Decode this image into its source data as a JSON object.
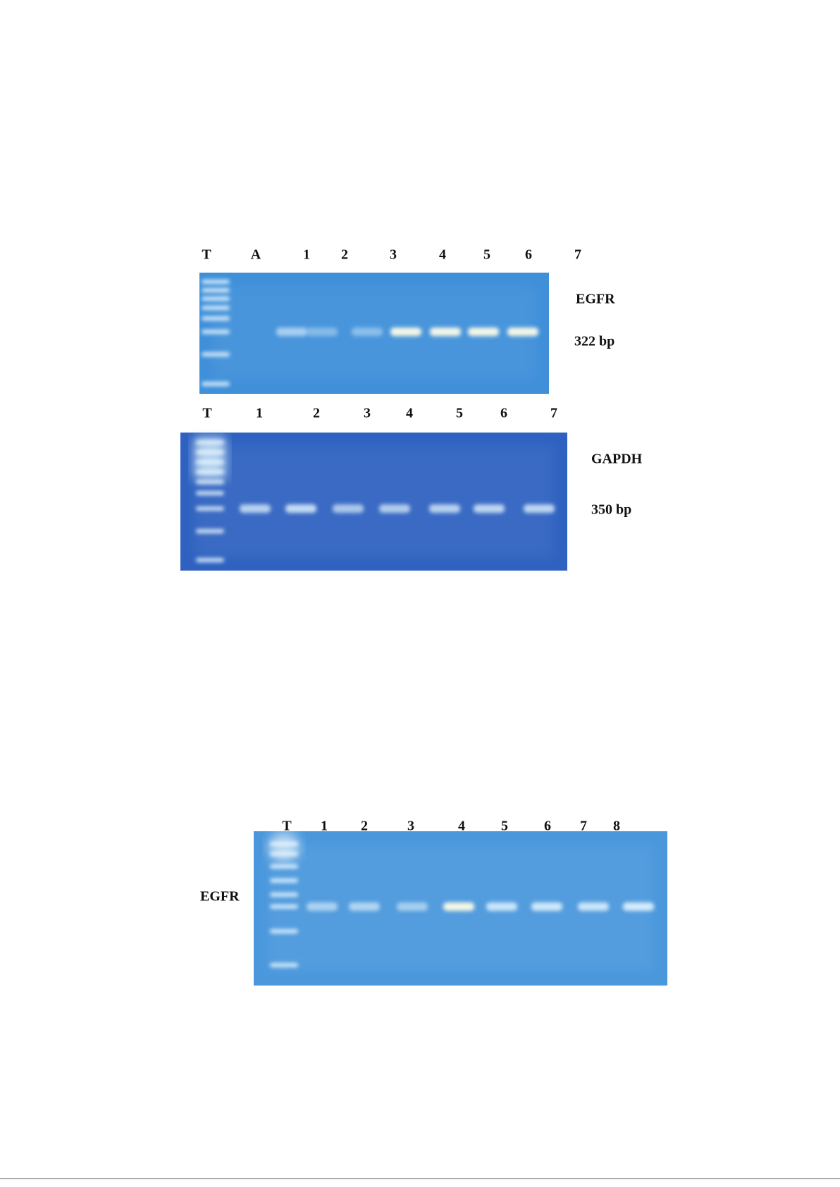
{
  "gels": [
    {
      "lanes": [
        "T",
        "A",
        "1",
        "2",
        "3",
        "4",
        "5",
        "6",
        "7"
      ],
      "gene": "EGFR",
      "size": "322 bp"
    },
    {
      "lanes": [
        "T",
        "1",
        "2",
        "3",
        "4",
        "5",
        "6",
        "7"
      ],
      "gene": "GAPDH",
      "size": "350 bp"
    },
    {
      "lanes": [
        "T",
        "1",
        "2",
        "3",
        "4",
        "5",
        "6",
        "7",
        "8"
      ],
      "gene": "EGFR"
    }
  ]
}
